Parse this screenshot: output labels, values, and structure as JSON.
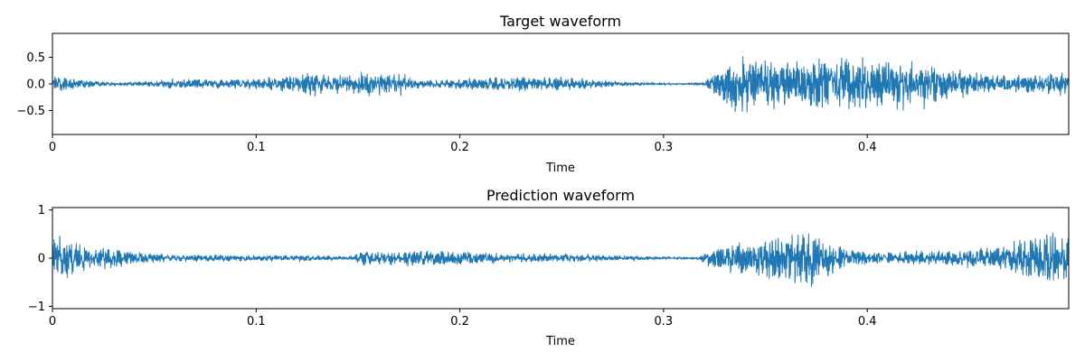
{
  "chart_data": [
    {
      "type": "line",
      "title": "Target waveform",
      "xlabel": "Time",
      "ylabel": "",
      "xlim": [
        0,
        0.4989
      ],
      "ylim": [
        -0.95,
        0.95
      ],
      "xticks": [
        0,
        0.1,
        0.2,
        0.3,
        0.4
      ],
      "xtick_labels": [
        "0",
        "0.1",
        "0.2",
        "0.3",
        "0.4"
      ],
      "yticks": [
        0.5,
        0.0,
        -0.5
      ],
      "ytick_labels": [
        "0.5",
        "0.0",
        "−0.5"
      ],
      "color": "#1f77b4",
      "grid": false,
      "envelope": {
        "t": [
          0,
          0.01,
          0.02,
          0.03,
          0.04,
          0.05,
          0.06,
          0.07,
          0.08,
          0.09,
          0.1,
          0.11,
          0.12,
          0.13,
          0.14,
          0.15,
          0.16,
          0.17,
          0.18,
          0.19,
          0.2,
          0.21,
          0.22,
          0.23,
          0.24,
          0.25,
          0.26,
          0.27,
          0.28,
          0.29,
          0.3,
          0.31,
          0.32,
          0.325,
          0.33,
          0.34,
          0.35,
          0.36,
          0.37,
          0.38,
          0.39,
          0.4,
          0.41,
          0.42,
          0.43,
          0.44,
          0.45,
          0.46,
          0.47,
          0.48,
          0.49,
          0.4989
        ],
        "amp": [
          0.22,
          0.16,
          0.08,
          0.04,
          0.05,
          0.08,
          0.14,
          0.16,
          0.12,
          0.14,
          0.15,
          0.2,
          0.28,
          0.3,
          0.26,
          0.3,
          0.32,
          0.34,
          0.1,
          0.12,
          0.14,
          0.16,
          0.18,
          0.2,
          0.2,
          0.18,
          0.15,
          0.1,
          0.06,
          0.04,
          0.03,
          0.02,
          0.04,
          0.4,
          0.65,
          0.82,
          0.62,
          0.6,
          0.66,
          0.72,
          0.76,
          0.74,
          0.7,
          0.72,
          0.62,
          0.42,
          0.32,
          0.28,
          0.24,
          0.26,
          0.3,
          0.32
        ]
      }
    },
    {
      "type": "line",
      "title": "Prediction waveform",
      "xlabel": "Time",
      "ylabel": "",
      "xlim": [
        0,
        0.4989
      ],
      "ylim": [
        -1.05,
        1.05
      ],
      "xticks": [
        0,
        0.1,
        0.2,
        0.3,
        0.4
      ],
      "xtick_labels": [
        "0",
        "0.1",
        "0.2",
        "0.3",
        "0.4"
      ],
      "yticks": [
        1,
        0,
        -1
      ],
      "ytick_labels": [
        "1",
        "0",
        "−1"
      ],
      "color": "#1f77b4",
      "grid": false,
      "envelope": {
        "t": [
          0,
          0.005,
          0.01,
          0.02,
          0.03,
          0.04,
          0.05,
          0.06,
          0.08,
          0.1,
          0.12,
          0.14,
          0.148,
          0.15,
          0.16,
          0.18,
          0.2,
          0.22,
          0.24,
          0.26,
          0.28,
          0.3,
          0.31,
          0.318,
          0.32,
          0.33,
          0.34,
          0.35,
          0.36,
          0.37,
          0.375,
          0.38,
          0.39,
          0.4,
          0.42,
          0.44,
          0.46,
          0.47,
          0.48,
          0.49,
          0.4989
        ],
        "amp": [
          0.7,
          0.6,
          0.45,
          0.36,
          0.28,
          0.2,
          0.14,
          0.12,
          0.1,
          0.08,
          0.09,
          0.06,
          0.06,
          0.22,
          0.2,
          0.24,
          0.2,
          0.15,
          0.14,
          0.12,
          0.08,
          0.04,
          0.03,
          0.05,
          0.2,
          0.4,
          0.48,
          0.62,
          0.78,
          0.82,
          0.8,
          0.62,
          0.35,
          0.18,
          0.2,
          0.24,
          0.3,
          0.4,
          0.7,
          0.85,
          0.62
        ]
      }
    }
  ]
}
